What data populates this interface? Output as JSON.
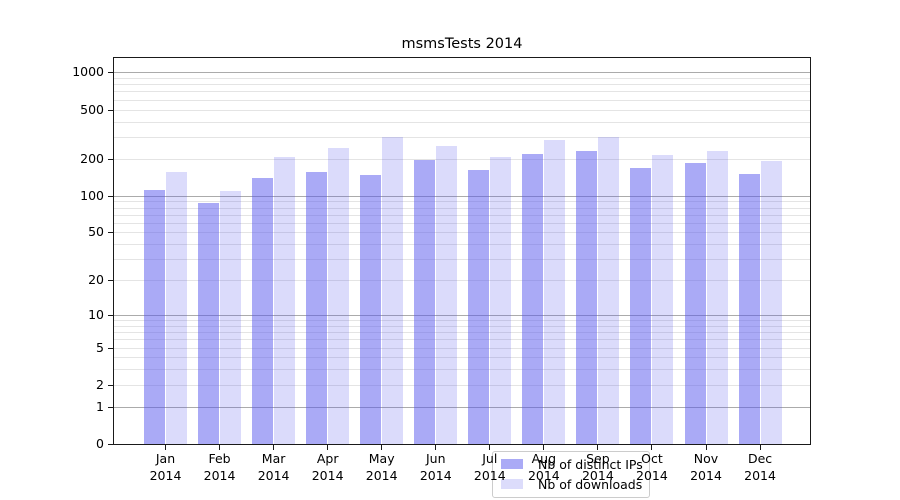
{
  "page": {
    "background": "#ffffff"
  },
  "chart_data": {
    "type": "bar",
    "title": "msmsTests 2014",
    "xlabel": "",
    "ylabel": "",
    "year": "2014",
    "categories": [
      "Jan",
      "Feb",
      "Mar",
      "Apr",
      "May",
      "Jun",
      "Jul",
      "Aug",
      "Sep",
      "Oct",
      "Nov",
      "Dec"
    ],
    "series": [
      {
        "name": "Nb of distinct IPs",
        "color_hex": "#aaaaf6",
        "color_rgba": "rgba(85,85,238,0.5)",
        "values": [
          112,
          87,
          140,
          156,
          148,
          197,
          161,
          217,
          233,
          169,
          185,
          150
        ]
      },
      {
        "name": "Nb of downloads",
        "color_hex": "#dcdcfb",
        "color_rgba": "rgba(85,85,238,0.21)",
        "values": [
          156,
          110,
          207,
          246,
          300,
          255,
          207,
          285,
          300,
          216,
          232,
          191
        ]
      }
    ],
    "y_scale": "log10(1+y)",
    "ylim": [
      0,
      1305
    ],
    "y_ticks": [
      0,
      1,
      2,
      5,
      10,
      20,
      50,
      100,
      200,
      500,
      1000
    ],
    "y_major_gridlines": [
      1,
      10,
      100,
      1000
    ],
    "y_minor_gridlines": [
      2,
      3,
      4,
      5,
      6,
      7,
      8,
      9,
      20,
      30,
      40,
      50,
      60,
      70,
      80,
      90,
      200,
      300,
      400,
      500,
      600,
      700,
      800,
      900
    ],
    "grid": true,
    "legend_position": "lower center",
    "colors": {
      "grid_major": "#ababab",
      "grid_minor": "#e4e4e4",
      "spine": "#1a1a1a",
      "text": "#000000",
      "background": "#ffffff"
    }
  }
}
